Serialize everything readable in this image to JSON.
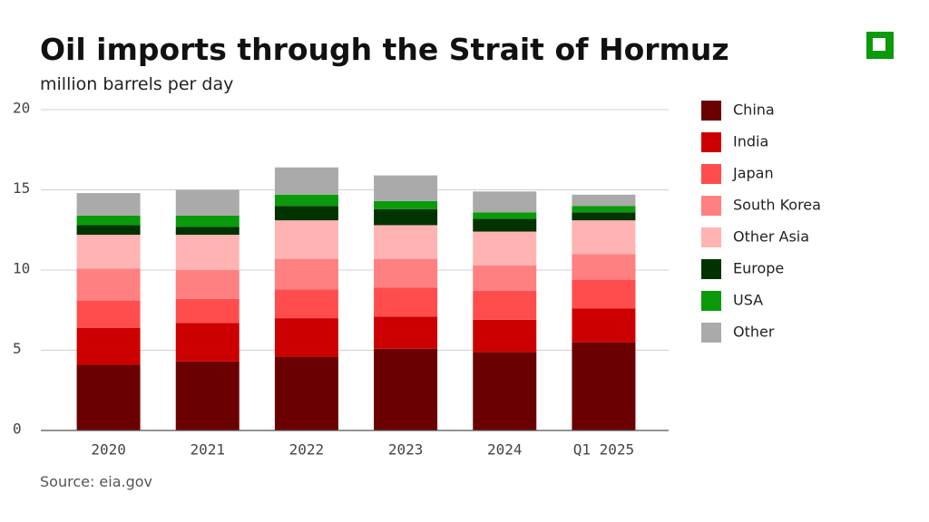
{
  "chart_data": {
    "type": "stacked_bar",
    "title": "Oil imports through the Strait of Hormuz",
    "subtitle": "million barrels per day",
    "source": "Source: eia.gov",
    "categories": [
      "2020",
      "2021",
      "2022",
      "2023",
      "2024",
      "Q1 2025"
    ],
    "series": [
      {
        "name": "China",
        "color": "#6b0000",
        "values": [
          4.1,
          4.3,
          4.6,
          5.1,
          4.9,
          5.5
        ]
      },
      {
        "name": "India",
        "color": "#cc0000",
        "values": [
          2.3,
          2.4,
          2.4,
          2.0,
          2.0,
          2.1
        ]
      },
      {
        "name": "Japan",
        "color": "#ff4d4d",
        "values": [
          1.7,
          1.5,
          1.8,
          1.8,
          1.8,
          1.8
        ]
      },
      {
        "name": "South Korea",
        "color": "#ff8080",
        "values": [
          2.0,
          1.8,
          1.9,
          1.8,
          1.6,
          1.6
        ]
      },
      {
        "name": "Other Asia",
        "color": "#ffb3b3",
        "values": [
          2.1,
          2.2,
          2.4,
          2.1,
          2.1,
          2.1
        ]
      },
      {
        "name": "Europe",
        "color": "#003300",
        "values": [
          0.6,
          0.5,
          0.9,
          1.0,
          0.8,
          0.5
        ]
      },
      {
        "name": "USA",
        "color": "#0a9a0a",
        "values": [
          0.6,
          0.7,
          0.7,
          0.5,
          0.4,
          0.4
        ]
      },
      {
        "name": "Other",
        "color": "#aaaaaa",
        "values": [
          1.4,
          1.6,
          1.7,
          1.6,
          1.3,
          0.7
        ]
      }
    ],
    "ylim": [
      0,
      20
    ],
    "yticks": [
      0,
      5,
      10,
      15,
      20
    ],
    "grid": true
  }
}
